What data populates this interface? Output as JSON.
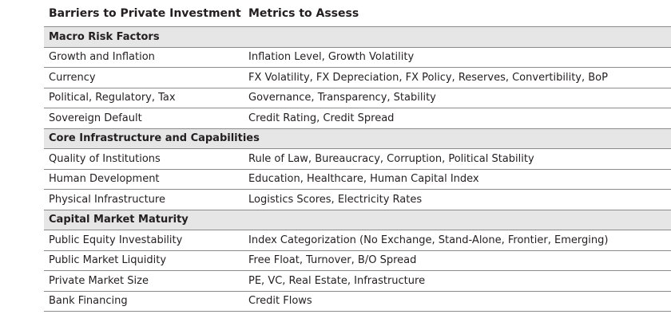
{
  "header": {
    "col1": "Barriers to Private Investment",
    "col2": "Metrics to Assess"
  },
  "sections": [
    {
      "title": "Macro Risk Factors",
      "rows": [
        {
          "barrier": "Growth and Inflation",
          "metrics": "Inflation Level, Growth Volatility"
        },
        {
          "barrier": "Currency",
          "metrics": "FX Volatility, FX Depreciation, FX Policy, Reserves, Convertibility, BoP"
        },
        {
          "barrier": "Political, Regulatory, Tax",
          "metrics": "Governance, Transparency, Stability"
        },
        {
          "barrier": "Sovereign Default",
          "metrics": "Credit Rating, Credit Spread"
        }
      ]
    },
    {
      "title": "Core Infrastructure and Capabilities",
      "rows": [
        {
          "barrier": "Quality of Institutions",
          "metrics": "Rule of Law, Bureaucracy, Corruption, Political Stability"
        },
        {
          "barrier": "Human Development",
          "metrics": "Education, Healthcare, Human Capital Index"
        },
        {
          "barrier": "Physical Infrastructure",
          "metrics": "Logistics Scores, Electricity Rates"
        }
      ]
    },
    {
      "title": "Capital Market Maturity",
      "rows": [
        {
          "barrier": "Public Equity Investability",
          "metrics": "Index Categorization (No Exchange, Stand-Alone, Frontier, Emerging)"
        },
        {
          "barrier": "Public Market Liquidity",
          "metrics": "Free Float, Turnover, B/O Spread"
        },
        {
          "barrier": "Private Market Size",
          "metrics": "PE, VC, Real Estate, Infrastructure"
        },
        {
          "barrier": "Bank Financing",
          "metrics": "Credit Flows"
        }
      ]
    }
  ]
}
